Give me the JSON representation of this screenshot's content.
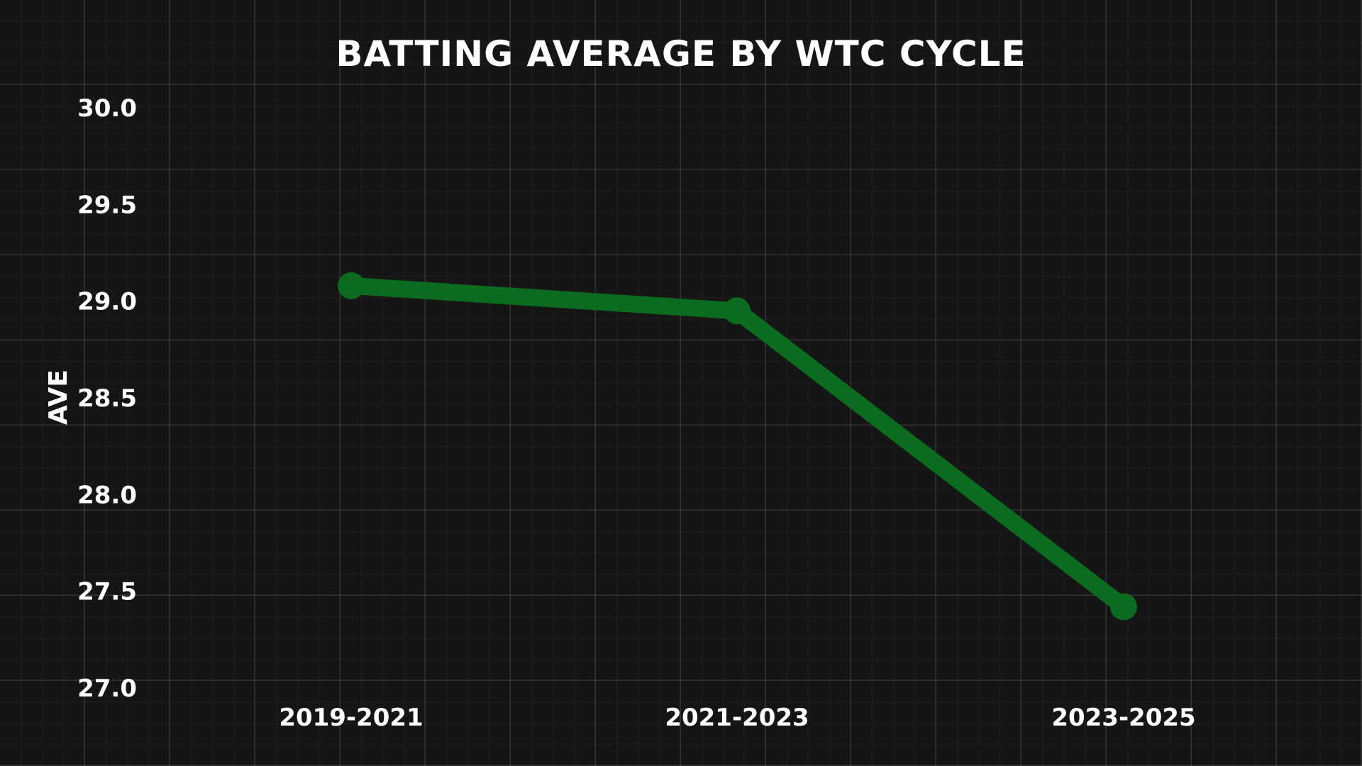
{
  "chart_data": {
    "type": "line",
    "title": "BATTING AVERAGE BY WTC CYCLE",
    "xlabel": "",
    "ylabel": "AVE",
    "categories": [
      "2019-2021",
      "2021-2023",
      "2023-2025"
    ],
    "series": [
      {
        "values": [
          29.08,
          28.95,
          27.42
        ]
      }
    ],
    "ylim": [
      27.0,
      30.0
    ],
    "yticks": [
      "27.0",
      "27.5",
      "28.0",
      "28.5",
      "29.0",
      "29.5",
      "30.0"
    ],
    "grid": true,
    "legend": "none",
    "colors": {
      "background": "#151515",
      "line": "#0b6b1f",
      "text": "#ffffff"
    }
  }
}
